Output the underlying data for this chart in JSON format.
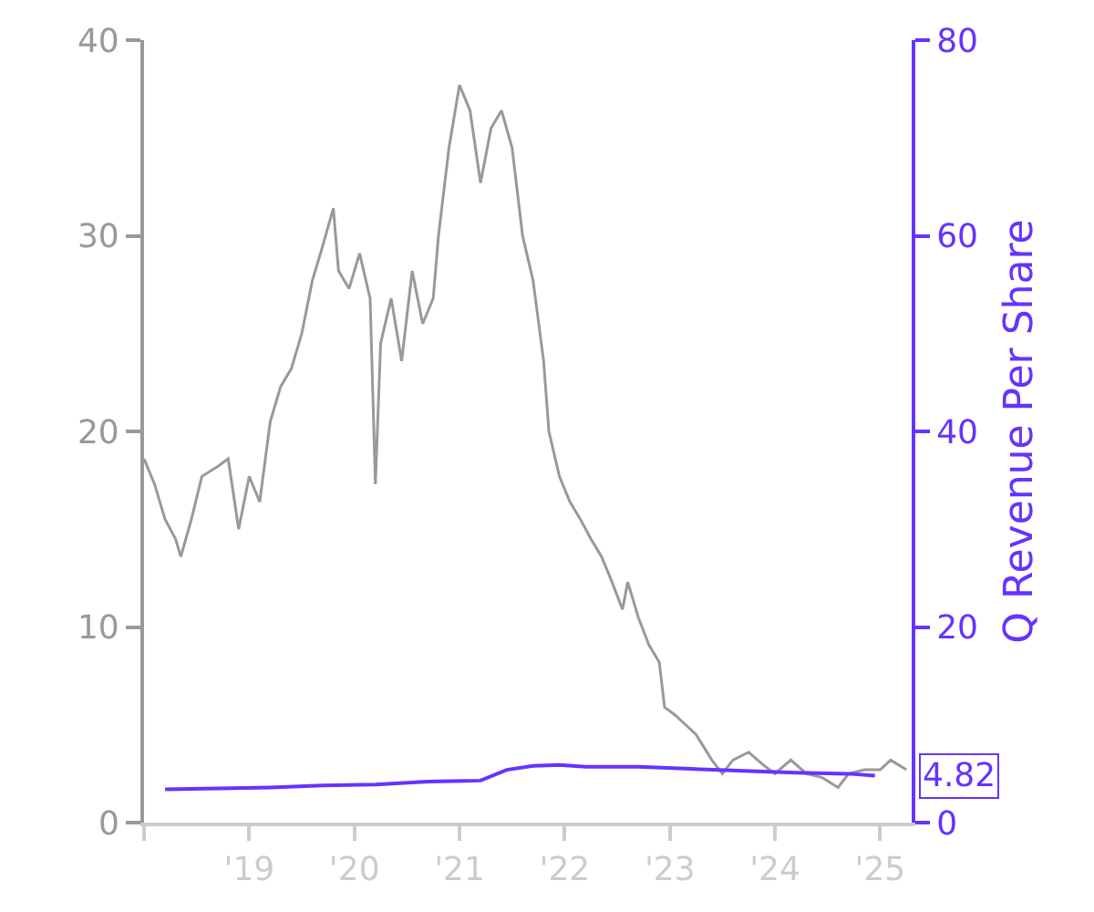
{
  "chart_data": {
    "type": "line",
    "y2label": "Q Revenue Per Share",
    "xlim": [
      2018.0,
      2025.3
    ],
    "xticks": [
      {
        "value": 2018,
        "label": null
      },
      {
        "value": 2019,
        "label": "'19"
      },
      {
        "value": 2020,
        "label": "'20"
      },
      {
        "value": 2021,
        "label": "'21"
      },
      {
        "value": 2022,
        "label": "'22"
      },
      {
        "value": 2023,
        "label": "'23"
      },
      {
        "value": 2024,
        "label": "'24"
      },
      {
        "value": 2025,
        "label": "'25"
      }
    ],
    "ylim": [
      0,
      40
    ],
    "yticks": [
      0,
      10,
      20,
      30,
      40
    ],
    "y2lim": [
      0,
      80
    ],
    "y2ticks": [
      0,
      20,
      40,
      60,
      80
    ],
    "series": [
      {
        "color": "#999999",
        "x": [
          2018.0,
          2018.1,
          2018.2,
          2018.3,
          2018.35,
          2018.45,
          2018.55,
          2018.7,
          2018.8,
          2018.9,
          2019.0,
          2019.1,
          2019.2,
          2019.3,
          2019.4,
          2019.5,
          2019.6,
          2019.7,
          2019.8,
          2019.85,
          2019.95,
          2020.05,
          2020.15,
          2020.2,
          2020.25,
          2020.35,
          2020.45,
          2020.55,
          2020.65,
          2020.75,
          2020.8,
          2020.9,
          2021.0,
          2021.1,
          2021.2,
          2021.3,
          2021.4,
          2021.5,
          2021.6,
          2021.7,
          2021.8,
          2021.85,
          2021.95,
          2022.05,
          2022.15,
          2022.25,
          2022.35,
          2022.45,
          2022.55,
          2022.6,
          2022.7,
          2022.8,
          2022.9,
          2022.95,
          2023.05,
          2023.15,
          2023.25,
          2023.4,
          2023.5,
          2023.6,
          2023.75,
          2023.9,
          2024.0,
          2024.15,
          2024.3,
          2024.45,
          2024.6,
          2024.7,
          2024.85,
          2025.0,
          2025.1,
          2025.25
        ],
        "values": [
          18.6,
          17.3,
          15.5,
          14.5,
          13.6,
          15.5,
          17.7,
          18.2,
          18.6,
          15.0,
          17.7,
          16.4,
          20.5,
          22.3,
          23.2,
          25.0,
          27.7,
          29.5,
          31.4,
          28.2,
          27.3,
          29.1,
          26.8,
          17.3,
          24.5,
          26.8,
          23.6,
          28.2,
          25.5,
          26.8,
          30.0,
          34.5,
          37.7,
          36.4,
          32.7,
          35.5,
          36.4,
          34.5,
          30.0,
          27.7,
          23.6,
          20.0,
          17.7,
          16.4,
          15.5,
          14.5,
          13.6,
          12.3,
          10.9,
          12.3,
          10.5,
          9.1,
          8.2,
          5.9,
          5.5,
          5.0,
          4.5,
          3.2,
          2.5,
          3.2,
          3.6,
          2.9,
          2.5,
          3.2,
          2.5,
          2.3,
          1.8,
          2.5,
          2.7,
          2.7,
          3.2,
          2.7
        ]
      },
      {
        "color": "#6633ff",
        "axis": "y2",
        "x": [
          2018.2,
          2018.7,
          2019.2,
          2019.7,
          2020.2,
          2020.7,
          2021.2,
          2021.45,
          2021.7,
          2021.95,
          2022.2,
          2022.7,
          2023.2,
          2023.7,
          2024.2,
          2024.7,
          2024.95
        ],
        "values": [
          3.4,
          3.5,
          3.6,
          3.8,
          3.9,
          4.2,
          4.3,
          5.4,
          5.8,
          5.9,
          5.7,
          5.7,
          5.5,
          5.3,
          5.1,
          5.0,
          4.8
        ]
      }
    ],
    "annotations": [
      "4.82"
    ]
  }
}
